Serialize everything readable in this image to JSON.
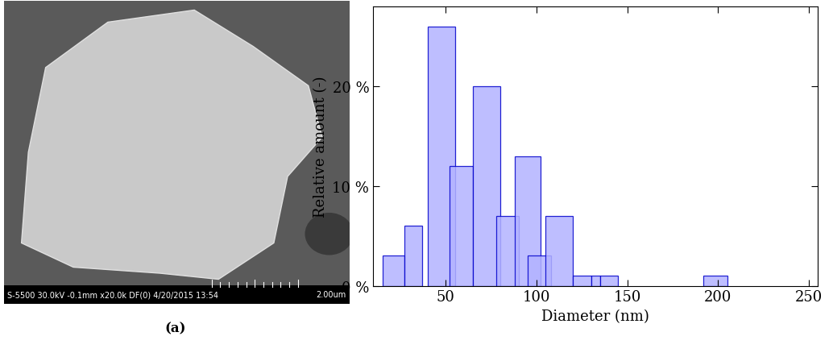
{
  "image": {
    "info_bar": "S-5500 30.0kV -0.1mm x20.0k DF(0) 4/20/2015 13:54",
    "scale_bar": "2.00um",
    "caption": "(a)"
  },
  "chart_data": {
    "type": "bar",
    "color": "#b3b3ff",
    "x_label": "Diameter (nm)",
    "y_label": "Relative amount (-)",
    "x": [
      21,
      32,
      47.5,
      58.5,
      72.5,
      84,
      95,
      101.5,
      112.5,
      125,
      132.5,
      140,
      198.5
    ],
    "widths": [
      12,
      10,
      15,
      13,
      15,
      12,
      14,
      13,
      15,
      10,
      5,
      10,
      13
    ],
    "values": [
      3,
      6,
      26,
      12,
      20,
      7,
      13,
      3,
      7,
      1,
      1,
      1,
      1
    ],
    "xlim": [
      10,
      255
    ],
    "xticks": [
      50,
      100,
      150,
      200,
      250
    ],
    "ylim": [
      0,
      28
    ],
    "yticks": [
      {
        "value": 0,
        "label": "0 %"
      },
      {
        "value": 10,
        "label": "10 %"
      },
      {
        "value": 20,
        "label": "20 %"
      }
    ]
  }
}
